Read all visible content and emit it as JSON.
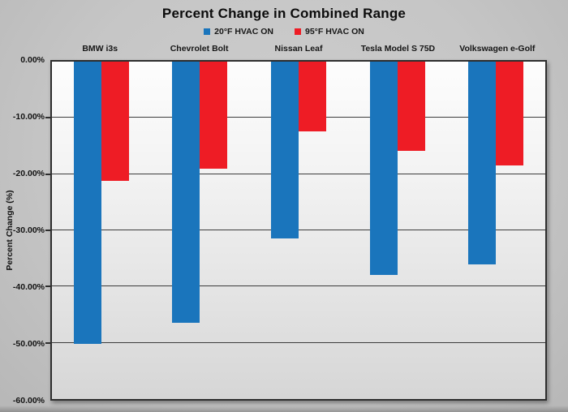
{
  "chart": {
    "title": "Percent Change in Combined Range",
    "y_axis_title": "Percent Change (%)"
  },
  "chart_data": {
    "type": "bar",
    "title": "Percent Change in Combined Range",
    "ylabel": "Percent Change (%)",
    "categories": [
      "BMW i3s",
      "Chevrolet Bolt",
      "Nissan Leaf",
      "Tesla Model S 75D",
      "Volkswagen e-Golf"
    ],
    "series": [
      {
        "name": "20°F HVAC ON",
        "color": "#1a75bc",
        "values": [
          -50.2,
          -46.5,
          -31.5,
          -38.0,
          -36.0
        ]
      },
      {
        "name": "95°F HVAC ON",
        "color": "#ee1c25",
        "values": [
          -21.2,
          -19.0,
          -12.4,
          -15.9,
          -18.4
        ]
      }
    ],
    "ylim": [
      -60,
      0
    ],
    "ytick_labels": [
      "0.00%",
      "-10.00%",
      "-20.00%",
      "-30.00%",
      "-40.00%",
      "-50.00%",
      "-60.00%"
    ],
    "grid": true,
    "legend_position": "top-center",
    "background": "#c6c6c6",
    "plot_background_top": "#fdfdfd",
    "plot_background_bottom": "#d6d6d6",
    "gridline_color": "#3c3c3c"
  }
}
